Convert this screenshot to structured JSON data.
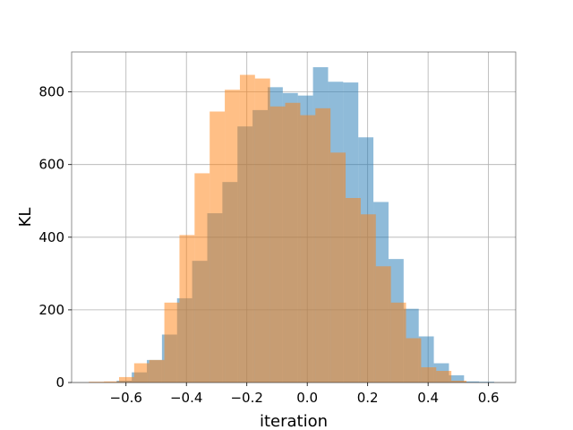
{
  "chart_data": {
    "type": "histogram",
    "title": "",
    "xlabel": "iteration",
    "ylabel": "KL",
    "xlim": [
      -0.78,
      0.69
    ],
    "ylim": [
      0,
      910
    ],
    "xticks": [
      -0.6,
      -0.4,
      -0.2,
      0.0,
      0.2,
      0.4,
      0.6
    ],
    "xtick_labels": [
      "−0.6",
      "−0.4",
      "−0.2",
      "0.0",
      "0.2",
      "0.4",
      "0.6"
    ],
    "yticks": [
      0,
      200,
      400,
      600,
      800
    ],
    "ytick_labels": [
      "0",
      "200",
      "400",
      "600",
      "800"
    ],
    "grid": true,
    "legend": "none",
    "series": [
      {
        "color": "#1f77b4",
        "alpha": 0.5,
        "bin_edges": [
          -0.631,
          -0.581,
          -0.531,
          -0.481,
          -0.431,
          -0.381,
          -0.331,
          -0.281,
          -0.231,
          -0.181,
          -0.131,
          -0.081,
          -0.031,
          0.019,
          0.069,
          0.119,
          0.169,
          0.219,
          0.269,
          0.319,
          0.369,
          0.419,
          0.469,
          0.519,
          0.569,
          0.619
        ],
        "counts": [
          5,
          28,
          62,
          132,
          232,
          335,
          466,
          552,
          705,
          750,
          813,
          797,
          790,
          868,
          828,
          826,
          675,
          497,
          340,
          203,
          127,
          53,
          20,
          3,
          2
        ]
      },
      {
        "color": "#ff7f0e",
        "alpha": 0.5,
        "bin_edges": [
          -0.723,
          -0.673,
          -0.623,
          -0.573,
          -0.523,
          -0.473,
          -0.423,
          -0.373,
          -0.323,
          -0.273,
          -0.223,
          -0.173,
          -0.123,
          -0.073,
          -0.023,
          0.027,
          0.077,
          0.127,
          0.177,
          0.227,
          0.277,
          0.327,
          0.377,
          0.427,
          0.477,
          0.527
        ],
        "counts": [
          2,
          3,
          15,
          53,
          62,
          220,
          406,
          576,
          746,
          806,
          847,
          837,
          760,
          770,
          736,
          755,
          633,
          508,
          463,
          320,
          220,
          122,
          42,
          32,
          5
        ]
      }
    ]
  }
}
